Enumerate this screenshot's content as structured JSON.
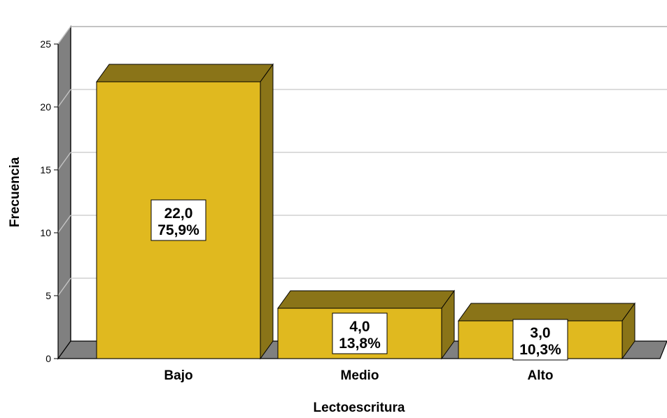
{
  "chart_data": {
    "type": "bar",
    "title": "",
    "xlabel": "Lectoescritura",
    "ylabel": "Frecuencia",
    "categories": [
      "Bajo",
      "Medio",
      "Alto"
    ],
    "values": [
      22,
      4,
      3
    ],
    "data_labels": [
      {
        "value": "22,0",
        "percent": "75,9%"
      },
      {
        "value": "4,0",
        "percent": "13,8%"
      },
      {
        "value": "3,0",
        "percent": "10,3%"
      }
    ],
    "ylim": [
      0,
      25
    ],
    "yticks": [
      "0",
      "5",
      "10",
      "15",
      "20",
      "25"
    ],
    "grid": true,
    "legend": "none",
    "three_d": true,
    "colors": {
      "bar_front": "#E0B91F",
      "bar_top": "#8A7418",
      "bar_side": "#8A7418",
      "wall": "#808080",
      "floor": "#808080",
      "gridline": "#C8C8C8"
    }
  }
}
